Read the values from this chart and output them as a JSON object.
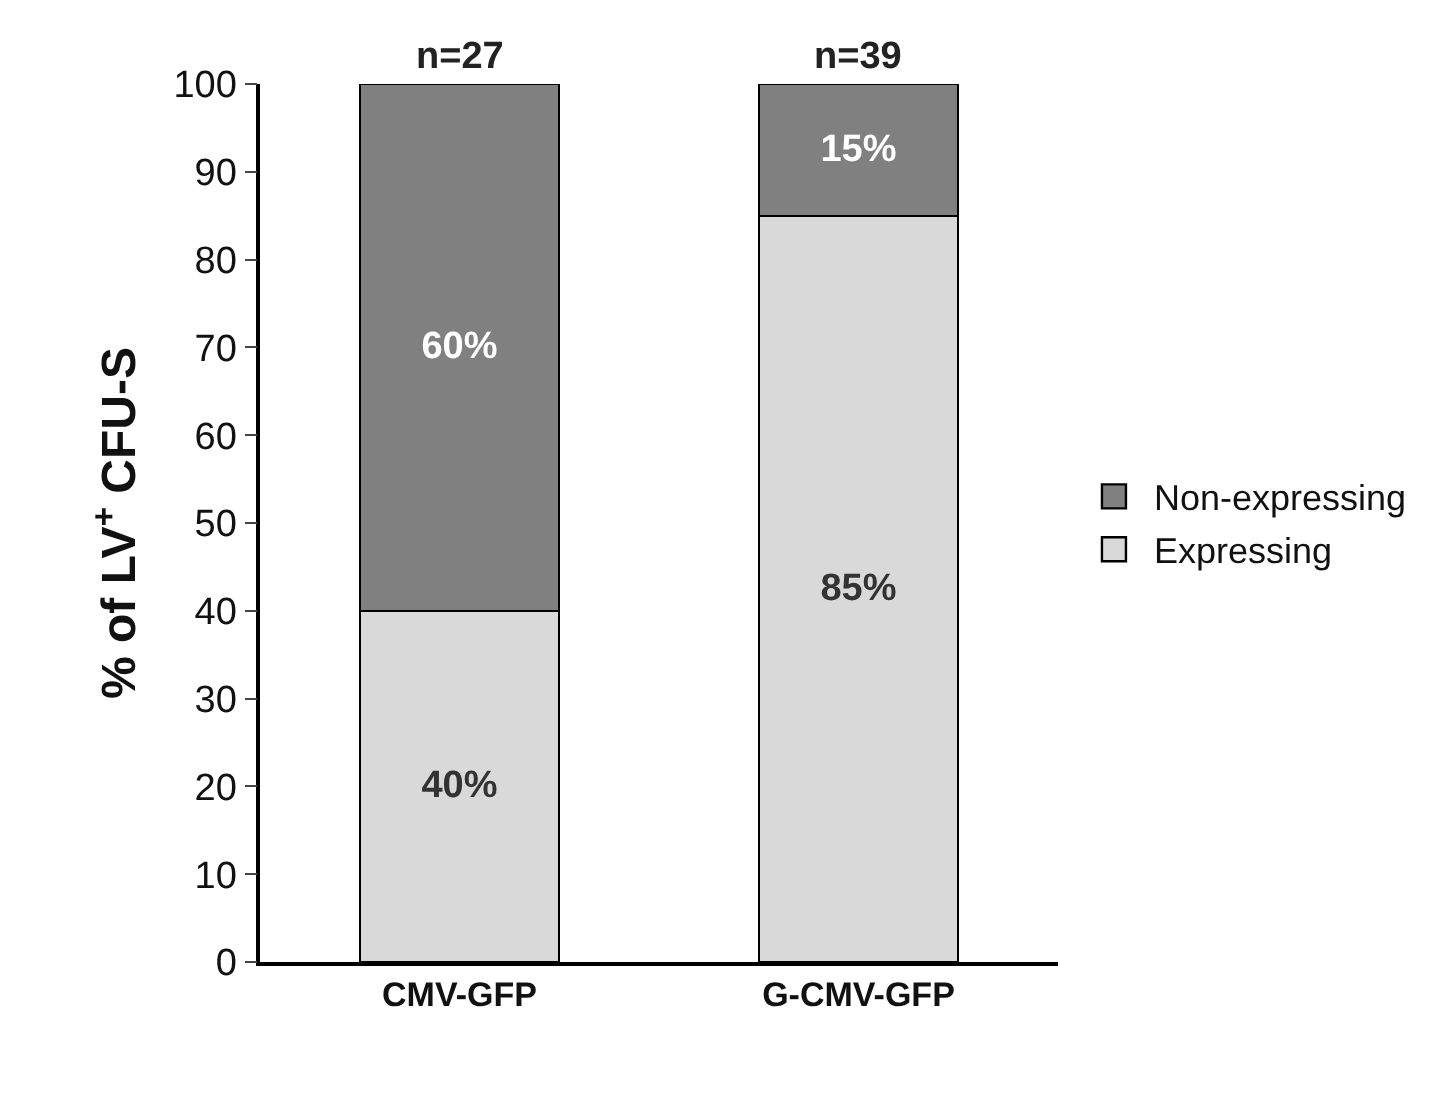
{
  "chart_data": {
    "type": "bar",
    "stacked": true,
    "ylabel": "% of LV$^{+}$ CFU-S",
    "categories": [
      "CMV-GFP",
      "G-CMV-GFP"
    ],
    "series": [
      {
        "name": "Expressing",
        "color": "#d9d9d9",
        "values": [
          40,
          85
        ],
        "value_labels": [
          "40%",
          "85%"
        ]
      },
      {
        "name": "Non-expressing",
        "color": "#808080",
        "values": [
          60,
          15
        ],
        "value_labels": [
          "60%",
          "15%"
        ]
      }
    ],
    "annotations": [
      {
        "text": "n=27",
        "x": "CMV-GFP",
        "y": 100
      },
      {
        "text": "n=39",
        "x": "G-CMV-GFP",
        "y": 100
      }
    ],
    "ylim": [
      0,
      100
    ],
    "yticks": [
      0,
      10,
      20,
      30,
      40,
      50,
      60,
      70,
      80,
      90,
      100
    ],
    "legend": "right"
  }
}
